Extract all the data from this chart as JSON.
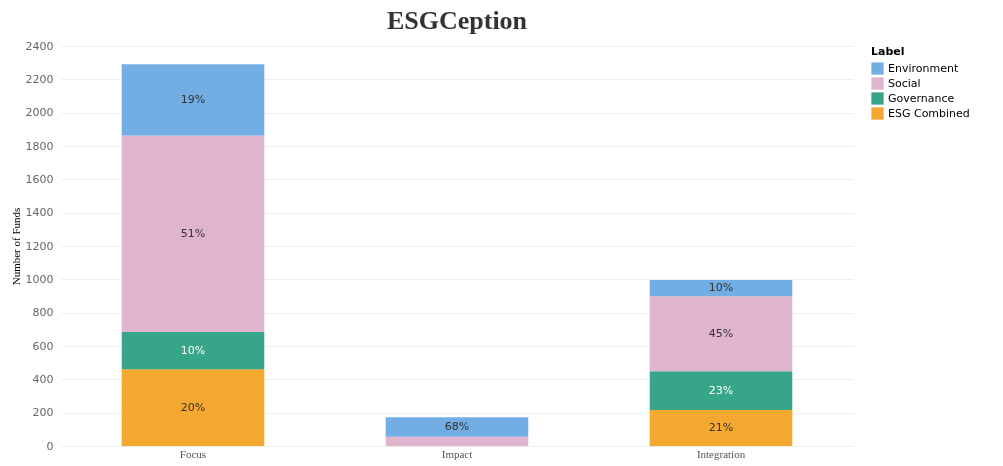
{
  "chart_data": {
    "type": "bar",
    "title": "ESGCeption",
    "ylabel": "Number of Funds",
    "legend_title": "Label",
    "categories": [
      "Focus",
      "Impact",
      "Integration"
    ],
    "stacked": true,
    "series": [
      {
        "name": "ESG Combined",
        "color": "#f5a82f",
        "values": [
          461,
          0,
          216
        ]
      },
      {
        "name": "Governance",
        "color": "#36a588",
        "values": [
          223,
          0,
          233
        ]
      },
      {
        "name": "Social",
        "color": "#e0b4cc",
        "values": [
          1179,
          55,
          449
        ]
      },
      {
        "name": "Environment",
        "color": "#72ade4",
        "values": [
          428,
          118,
          98
        ]
      }
    ],
    "annotations": [
      {
        "text": "20%",
        "x": "Focus",
        "y": 461
      },
      {
        "text": "10%",
        "x": "Focus",
        "y": 684
      },
      "51%",
      {
        "text": "19%",
        "x": "Focus",
        "y": 2291
      },
      {
        "text": "68%",
        "x": "Impact",
        "y": 173
      },
      {
        "text": "21%",
        "x": "Integration",
        "y": 216
      },
      {
        "text": "23%",
        "x": "Integration",
        "y": 449
      },
      {
        "text": "45%",
        "x": "Integration",
        "y": 898
      },
      {
        "text": "10%",
        "x": "Integration",
        "y": 996
      }
    ],
    "ylim": [
      0,
      2400
    ],
    "yticks": [
      0,
      200,
      400,
      600,
      800,
      1000,
      1200,
      1400,
      1600,
      1800,
      2000,
      2200,
      2400
    ],
    "grid": "y",
    "legend": "top right"
  }
}
